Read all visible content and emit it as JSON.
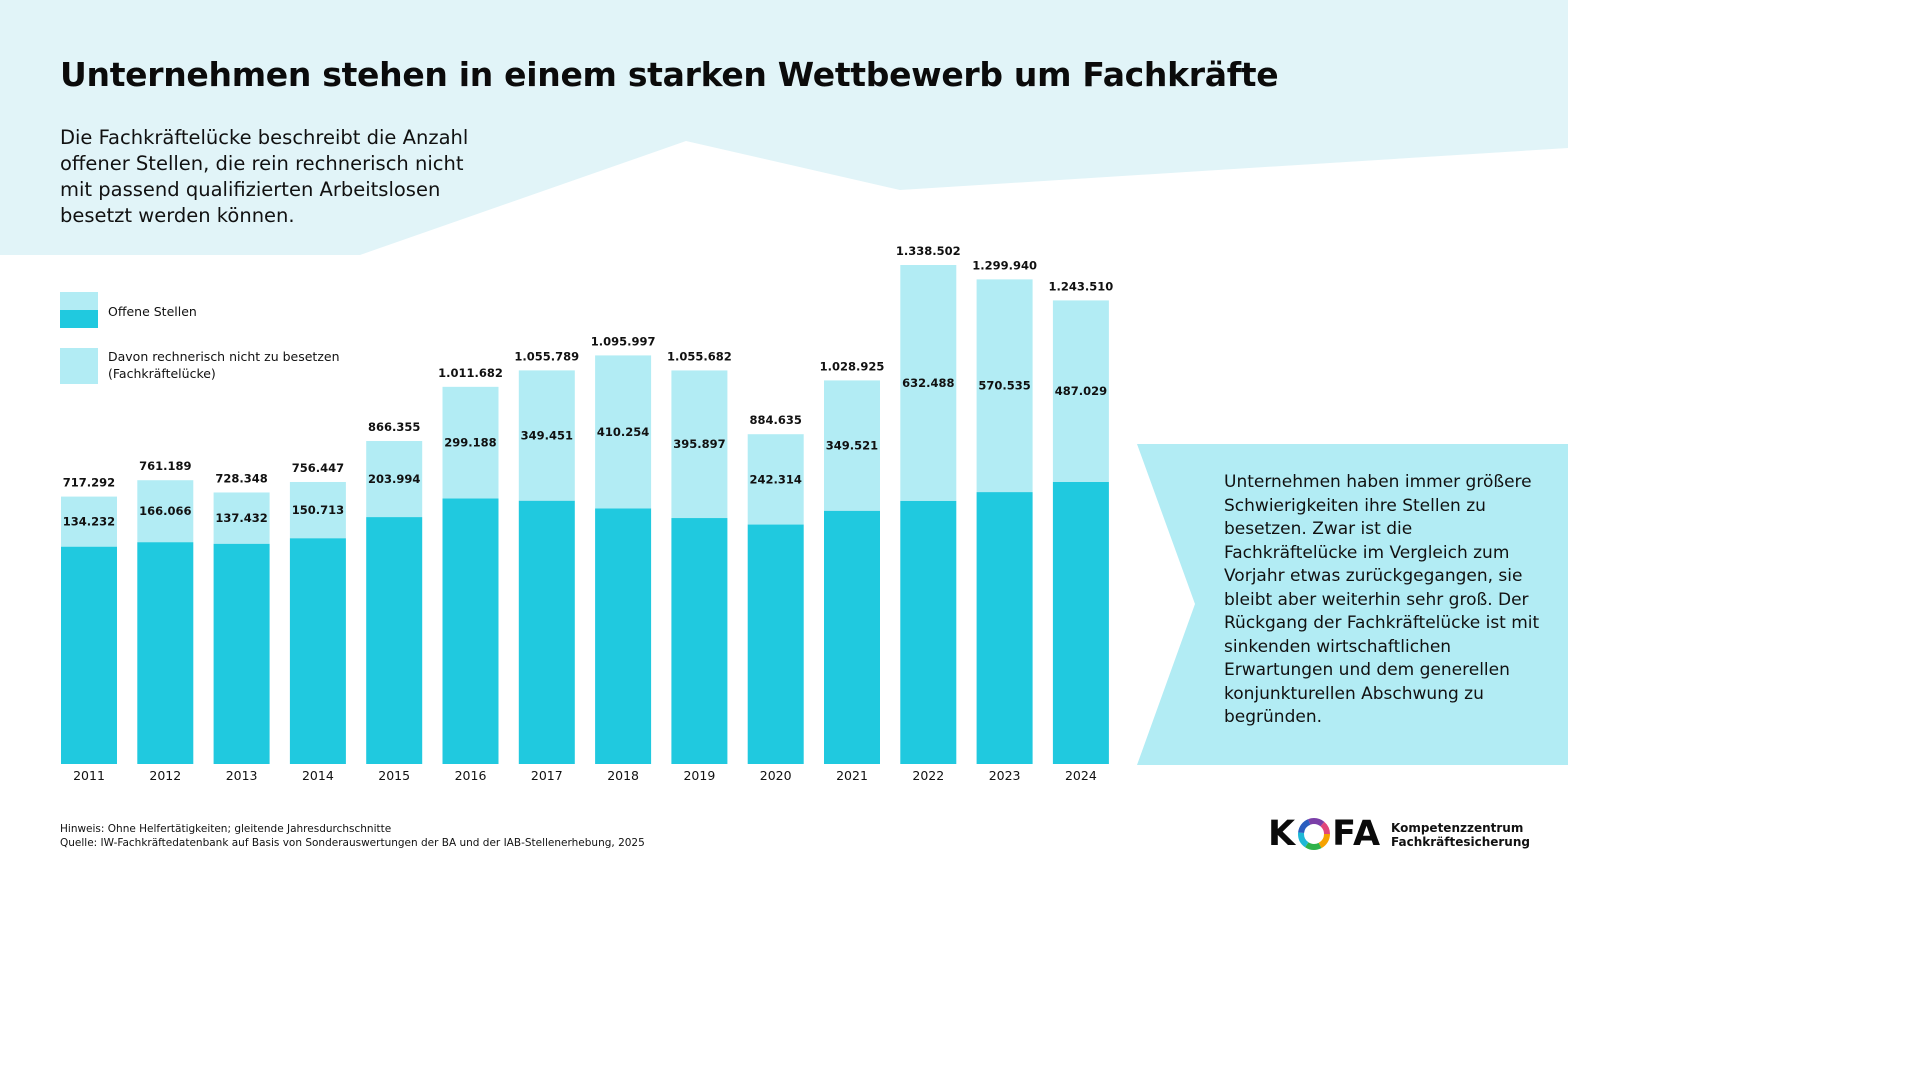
{
  "title": "Unternehmen stehen in einem starken Wettbewerb um Fachkräfte",
  "intro": "Die Fachkräftelücke beschreibt die Anzahl offener Stellen, die rein rechnerisch nicht mit passend qualifizierten Arbeitslosen besetzt werden können.",
  "legend": {
    "item1": "Offene Stellen",
    "item2_line1": "Davon rechnerisch nicht zu besetzen",
    "item2_line2": "(Fachkräftelücke)"
  },
  "colors": {
    "background_band": "#e1f4f8",
    "open_positions": "#20c9df",
    "gap": "#b2ecf4",
    "text": "#111111"
  },
  "chart_data": {
    "type": "bar",
    "stacked": true,
    "categories": [
      "2011",
      "2012",
      "2013",
      "2014",
      "2015",
      "2016",
      "2017",
      "2018",
      "2019",
      "2020",
      "2021",
      "2022",
      "2023",
      "2024"
    ],
    "series": [
      {
        "name": "Offene Stellen",
        "values": [
          717292,
          761189,
          728348,
          756447,
          866355,
          1011682,
          1055789,
          1095997,
          1055682,
          884635,
          1028925,
          1338502,
          1299940,
          1243510
        ],
        "labels": [
          "717.292",
          "761.189",
          "728.348",
          "756.447",
          "866.355",
          "1.011.682",
          "1.055.789",
          "1.095.997",
          "1.055.682",
          "884.635",
          "1.028.925",
          "1.338.502",
          "1.299.940",
          "1.243.510"
        ]
      },
      {
        "name": "Davon rechnerisch nicht zu besetzen (Fachkräftelücke)",
        "values": [
          134232,
          166066,
          137432,
          150713,
          203994,
          299188,
          349451,
          410254,
          395897,
          242314,
          349521,
          632488,
          570535,
          487029
        ],
        "labels": [
          "134.232",
          "166.066",
          "137.432",
          "150.713",
          "203.994",
          "299.188",
          "349.451",
          "410.254",
          "395.897",
          "242.314",
          "349.521",
          "632.488",
          "570.535",
          "487.029"
        ]
      }
    ],
    "legend_position": "top-left",
    "grid": false,
    "y_axis_visible": false
  },
  "callout": "Unternehmen haben immer größere Schwierigkeiten ihre Stellen zu besetzen. Zwar ist die Fachkräftelücke im Vergleich zum Vorjahr etwas zurückgegangen, sie bleibt aber weiterhin sehr groß. Der Rückgang der Fach­kräftelücke ist mit sinkenden wirtschaftlichen Erwartungen und dem generellen konjunk­turellen Abschwung zu begründen.",
  "footnote": {
    "hint": "Hinweis: Ohne Helfertätigkeiten; gleitende Jahresdurchschnitte",
    "source": "Quelle: IW-Fachkräftedatenbank auf Basis von Sonderauswertungen der BA und der IAB-Stellenerhebung, 2025"
  },
  "logo": {
    "word_left": "K",
    "word_right": "FA",
    "line1": "Kompetenzzentrum",
    "line2": "Fachkräftesicherung"
  }
}
